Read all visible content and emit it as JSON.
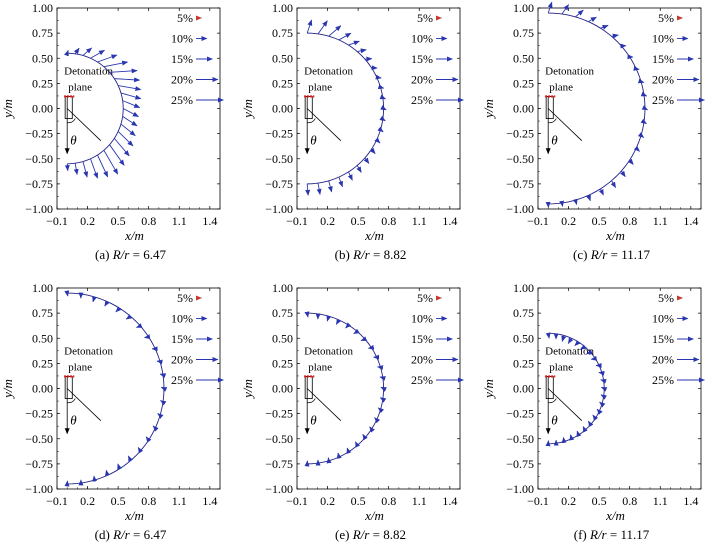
{
  "chart_data": [
    {
      "type": "vector-field",
      "caption": "(a) R/r = 6.47",
      "caption_prefix": "(a) ",
      "caption_var": "R/r",
      "caption_value": "6.47",
      "xlabel": "x/m",
      "ylabel": "y/m",
      "xlim": [
        -0.1,
        1.5
      ],
      "ylim": [
        -1.0,
        1.0
      ],
      "xticks": [
        "−0.1",
        "0.2",
        "0.5",
        "0.8",
        "1.1",
        "1.4"
      ],
      "xtick_values": [
        -0.1,
        0.2,
        0.5,
        0.8,
        1.1,
        1.4
      ],
      "yticks": [
        "1.00",
        "0.75",
        "0.50",
        "0.25",
        "0.00",
        "−0.25",
        "−0.50",
        "−0.75",
        "−1.00"
      ],
      "ytick_values": [
        1.0,
        0.75,
        0.5,
        0.25,
        0.0,
        -0.25,
        -0.5,
        -0.75,
        -1.0
      ],
      "radius_m": 0.55,
      "annotations": [
        "Detonation",
        "plane",
        "θ"
      ],
      "arrow_direction": "outward",
      "vectors_percent": [
        2,
        6,
        10,
        14,
        18,
        21,
        24,
        22,
        20,
        18,
        16,
        15,
        15,
        16,
        18,
        20,
        22,
        24,
        21,
        18,
        14,
        10,
        6
      ],
      "legend": [
        "5%",
        "10%",
        "15%",
        "20%",
        "25%"
      ],
      "legend_values": [
        5,
        10,
        15,
        20,
        25
      ]
    },
    {
      "type": "vector-field",
      "caption": "(b) R/r = 8.82",
      "caption_prefix": "(b) ",
      "caption_var": "R/r",
      "caption_value": "8.82",
      "xlabel": "x/m",
      "ylabel": "y/m",
      "xlim": [
        -0.1,
        1.5
      ],
      "ylim": [
        -1.0,
        1.0
      ],
      "xticks": [
        "−0.1",
        "0.2",
        "0.5",
        "0.8",
        "1.1",
        "1.4"
      ],
      "xtick_values": [
        -0.1,
        0.2,
        0.5,
        0.8,
        1.1,
        1.4
      ],
      "yticks": [
        "1.00",
        "0.75",
        "0.50",
        "0.25",
        "0.00",
        "−0.25",
        "−0.50",
        "−0.75",
        "−1.00"
      ],
      "ytick_values": [
        1.0,
        0.75,
        0.5,
        0.25,
        0.0,
        -0.25,
        -0.5,
        -0.75,
        -1.0
      ],
      "radius_m": 0.75,
      "annotations": [
        "Detonation",
        "plane",
        "θ"
      ],
      "arrow_direction": "outward",
      "vectors_percent": [
        12,
        14,
        14,
        12,
        10,
        8,
        6,
        5,
        4,
        3,
        2,
        2,
        2,
        3,
        4,
        5,
        6,
        7,
        8,
        9,
        10,
        10,
        10
      ],
      "legend": [
        "5%",
        "10%",
        "15%",
        "20%",
        "25%"
      ],
      "legend_values": [
        5,
        10,
        15,
        20,
        25
      ]
    },
    {
      "type": "vector-field",
      "caption": "(c) R/r = 11.17",
      "caption_prefix": "(c) ",
      "caption_var": "R/r",
      "caption_value": "11.17",
      "xlabel": "x/m",
      "ylabel": "y/m",
      "xlim": [
        -0.1,
        1.5
      ],
      "ylim": [
        -1.0,
        1.0
      ],
      "xticks": [
        "−0.1",
        "0.2",
        "0.5",
        "0.8",
        "1.1",
        "1.4"
      ],
      "xtick_values": [
        -0.1,
        0.2,
        0.5,
        0.8,
        1.1,
        1.4
      ],
      "yticks": [
        "1.00",
        "0.75",
        "0.50",
        "0.25",
        "0.00",
        "−0.25",
        "−0.50",
        "−0.75",
        "−1.00"
      ],
      "ytick_values": [
        1.0,
        0.75,
        0.5,
        0.25,
        0.0,
        -0.25,
        -0.5,
        -0.75,
        -1.0
      ],
      "radius_m": 0.95,
      "annotations": [
        "Detonation",
        "plane",
        "θ"
      ],
      "arrow_direction": "outward",
      "vectors_percent": [
        10,
        10,
        9,
        8,
        7,
        6,
        4,
        3,
        2,
        2,
        2,
        1,
        2,
        3,
        4,
        5,
        6,
        7,
        6,
        5,
        4,
        3,
        3
      ],
      "legend": [
        "5%",
        "10%",
        "15%",
        "20%",
        "25%"
      ],
      "legend_values": [
        5,
        10,
        15,
        20,
        25
      ]
    },
    {
      "type": "vector-field",
      "caption": "(d) R/r = 6.47",
      "caption_prefix": "(d) ",
      "caption_var": "R/r",
      "caption_value": "6.47",
      "xlabel": "x/m",
      "ylabel": "y/m",
      "xlim": [
        -0.1,
        1.5
      ],
      "ylim": [
        -1.0,
        1.0
      ],
      "xticks": [
        "−0.1",
        "0.2",
        "0.5",
        "0.8",
        "1.1",
        "1.4"
      ],
      "xtick_values": [
        -0.1,
        0.2,
        0.5,
        0.8,
        1.1,
        1.4
      ],
      "yticks": [
        "1.00",
        "0.75",
        "0.50",
        "0.25",
        "0.00",
        "−0.25",
        "−0.50",
        "−0.75",
        "−1.00"
      ],
      "ytick_values": [
        1.0,
        0.75,
        0.5,
        0.25,
        0.0,
        -0.25,
        -0.5,
        -0.75,
        -1.0
      ],
      "radius_m": 0.95,
      "annotations": [
        "Detonation",
        "plane",
        "θ"
      ],
      "arrow_direction": "inward",
      "vectors_percent": [
        3,
        4,
        5,
        5,
        5,
        5,
        4,
        4,
        3,
        3,
        2,
        2,
        2,
        3,
        3,
        4,
        4,
        5,
        5,
        5,
        4,
        3,
        3
      ],
      "legend": [
        "5%",
        "10%",
        "15%",
        "20%",
        "25%"
      ],
      "legend_values": [
        5,
        10,
        15,
        20,
        25
      ]
    },
    {
      "type": "vector-field",
      "caption": "(e) R/r = 8.82",
      "caption_prefix": "(e) ",
      "caption_var": "R/r",
      "caption_value": "8.82",
      "xlabel": "x/m",
      "ylabel": "y/m",
      "xlim": [
        -0.1,
        1.5
      ],
      "ylim": [
        -1.0,
        1.0
      ],
      "xticks": [
        "−0.1",
        "0.2",
        "0.5",
        "0.8",
        "1.1",
        "1.4"
      ],
      "xtick_values": [
        -0.1,
        0.2,
        0.5,
        0.8,
        1.1,
        1.4
      ],
      "yticks": [
        "1.00",
        "0.75",
        "0.50",
        "0.25",
        "0.00",
        "−0.25",
        "−0.50",
        "−0.75",
        "−1.00"
      ],
      "ytick_values": [
        1.0,
        0.75,
        0.5,
        0.25,
        0.0,
        -0.25,
        -0.5,
        -0.75,
        -1.0
      ],
      "radius_m": 0.75,
      "annotations": [
        "Detonation",
        "plane",
        "θ"
      ],
      "arrow_direction": "inward",
      "vectors_percent": [
        4,
        5,
        5,
        5,
        4,
        4,
        4,
        3,
        3,
        2,
        2,
        2,
        2,
        2,
        3,
        3,
        4,
        4,
        4,
        4,
        3,
        3,
        2
      ],
      "legend": [
        "5%",
        "10%",
        "15%",
        "20%",
        "25%"
      ],
      "legend_values": [
        5,
        10,
        15,
        20,
        25
      ]
    },
    {
      "type": "vector-field",
      "caption": "(f) R/r = 11.17",
      "caption_prefix": "(f) ",
      "caption_var": "R/r",
      "caption_value": "11.17",
      "xlabel": "x/m",
      "ylabel": "y/m",
      "xlim": [
        -0.1,
        1.5
      ],
      "ylim": [
        -1.0,
        1.0
      ],
      "xticks": [
        "−0.1",
        "0.2",
        "0.5",
        "0.8",
        "1.1",
        "1.4"
      ],
      "xtick_values": [
        -0.1,
        0.2,
        0.5,
        0.8,
        1.1,
        1.4
      ],
      "yticks": [
        "1.00",
        "0.75",
        "0.50",
        "0.25",
        "0.00",
        "−0.25",
        "−0.50",
        "−0.75",
        "−1.00"
      ],
      "ytick_values": [
        1.0,
        0.75,
        0.5,
        0.25,
        0.0,
        -0.25,
        -0.5,
        -0.75,
        -1.0
      ],
      "radius_m": 0.55,
      "annotations": [
        "Detonation",
        "plane",
        "θ"
      ],
      "arrow_direction": "inward",
      "vectors_percent": [
        5,
        5,
        6,
        6,
        5,
        5,
        4,
        4,
        3,
        3,
        3,
        3,
        3,
        3,
        3,
        4,
        4,
        4,
        4,
        4,
        4,
        3,
        3
      ],
      "legend": [
        "5%",
        "10%",
        "15%",
        "20%",
        "25%"
      ],
      "legend_values": [
        5,
        10,
        15,
        20,
        25
      ]
    }
  ],
  "colors": {
    "arrow": "#2a36b0",
    "legend_arrow_5": "#c8382e",
    "boundary": "#222288",
    "detonation_plane": "#e01010",
    "axes": "#000000"
  }
}
